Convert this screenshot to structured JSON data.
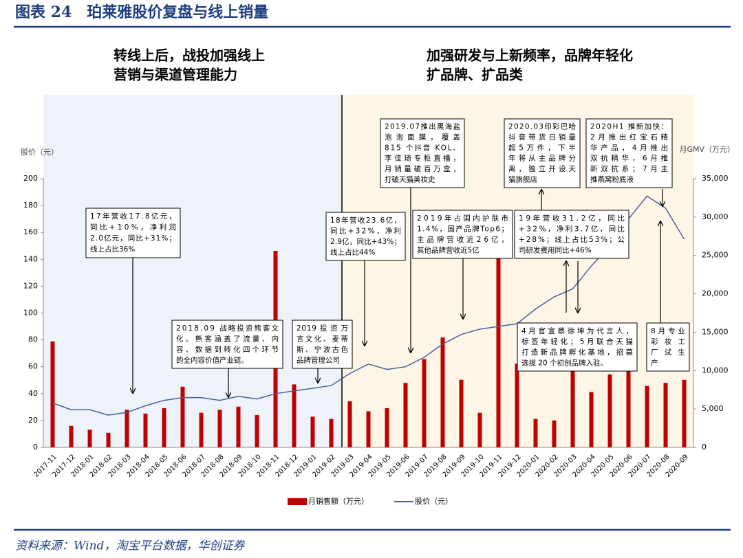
{
  "header": {
    "title": "图表 24　珀莱雅股价复盘与线上销量"
  },
  "headings": [
    [
      "转线上后，战投加强线上",
      "营销与渠道管理能力"
    ],
    [
      "加强研发与上新频率，品牌年轻化",
      "扩品牌、扩品类"
    ]
  ],
  "source": "资料来源：Wind，淘宝平台数据，华创证券",
  "chart_data": {
    "type": "combo",
    "ylabel": "股价（元）",
    "y2label": "月GMV（万元）",
    "categories": [
      "2017-11",
      "2017-12",
      "2018-01",
      "2018-02",
      "2018-03",
      "2018-04",
      "2018-05",
      "2018-06",
      "2018-07",
      "2018-08",
      "2018-09",
      "2018-10",
      "2018-11",
      "2018-12",
      "2019-01",
      "2019-02",
      "2019-03",
      "2019-04",
      "2019-05",
      "2019-06",
      "2019-07",
      "2019-08",
      "2019-09",
      "2019-10",
      "2019-11",
      "2019-12",
      "2020-01",
      "2020-02",
      "2020-03",
      "2020-04",
      "2020-05",
      "2020-06",
      "2020-07",
      "2020-08",
      "2020-09"
    ],
    "series": [
      {
        "name": "月销售额（万元）",
        "type": "bar",
        "axis": "y2",
        "color": "#c00000",
        "values": [
          13800,
          2800,
          2300,
          1900,
          4900,
          4400,
          5100,
          7900,
          4500,
          4900,
          5300,
          4200,
          25600,
          8200,
          4000,
          3700,
          6000,
          4700,
          5100,
          8400,
          11500,
          14300,
          8800,
          4500,
          25400,
          10900,
          3700,
          3500,
          11400,
          7200,
          9500,
          13100,
          8000,
          8400,
          8800
        ]
      },
      {
        "name": "股价（元）",
        "type": "line",
        "color": "#4a5f99",
        "values": [
          33,
          28,
          28,
          24,
          26,
          31,
          35,
          37,
          37,
          35,
          38,
          36,
          40,
          42,
          44,
          46,
          55,
          62,
          58,
          60,
          67,
          77,
          84,
          88,
          90,
          92,
          103,
          112,
          118,
          135,
          150,
          170,
          187,
          178,
          155
        ]
      }
    ],
    "ylim": [
      0,
      200
    ],
    "yticks": [
      0,
      20,
      40,
      60,
      80,
      100,
      120,
      140,
      160,
      180,
      200
    ],
    "y2lim": [
      0,
      35000
    ],
    "y2ticks": [
      0,
      {
        "value": 5000,
        "label": "5,000"
      },
      {
        "value": 10000,
        "label": "10,000"
      },
      {
        "value": 15000,
        "label": "15,000"
      },
      {
        "value": 20000,
        "label": "20,000"
      },
      {
        "value": 25000,
        "label": "25,000"
      },
      {
        "value": 30000,
        "label": "30,000"
      },
      {
        "value": 35000,
        "label": "35,000"
      }
    ],
    "annotations": [
      {
        "lines": [
          "17年营收17.8亿元，",
          "同比+10%，净利润",
          "2.0亿元，同比+31%；",
          "线上占比36%"
        ]
      },
      {
        "lines": [
          "2018.09 战略投资熊客文",
          "化。熊客涵盖了流量、内",
          "容、数据到转化四个环节",
          "的全内容价值产业链。"
        ]
      },
      {
        "lines": [
          "2019 投 资 万",
          "言文化、麦蒂",
          "斯、宁波古色",
          "品牌管理公司"
        ]
      },
      {
        "lines": [
          "18年营收23.6亿，",
          "同比+32%，净利",
          "2.9亿，同比+43%；",
          "线上占比44%"
        ]
      },
      {
        "lines": [
          "2019.07推出黑海盐",
          "泡泡面膜，覆盖",
          "815 个抖音 KOL、",
          "李佳琦专柜直播，",
          "月销量破百万盒，",
          "打破天猫美妆史"
        ]
      },
      {
        "lines": [
          "2019年占国内护肤市",
          "1.4%，国产品牌Top6；",
          "主品牌营收近26亿，",
          "其他品牌营收近5亿"
        ]
      },
      {
        "lines": [
          "2020.03印彩巴哈",
          "抖音带货日销量",
          "超5万件，下半",
          "年将从主品牌分",
          "离，独立开设天",
          "猫旗舰店"
        ]
      },
      {
        "lines": [
          "2020H1 推新加快：",
          "2月推出红宝石精",
          "华产品，4月推出",
          "双抗精华，6月推",
          "新双抗系；7月主",
          "推燕窝粉底液"
        ]
      },
      {
        "lines": [
          "19年营收31.2亿，同比",
          "+32%，净利3.7亿，同比",
          "+28%；线上占比53%；公",
          "司研发费用同比+46%"
        ]
      },
      {
        "lines": [
          "4月官宣蔡徐坤为代言人，",
          "标签年轻化；5月联合天猫",
          "打造新品牌孵化基地，招募",
          "选拔 20 个初创品牌入驻。"
        ]
      },
      {
        "lines": [
          "8月专业",
          "彩 妆 工",
          "厂 试 生",
          "产"
        ]
      }
    ]
  }
}
